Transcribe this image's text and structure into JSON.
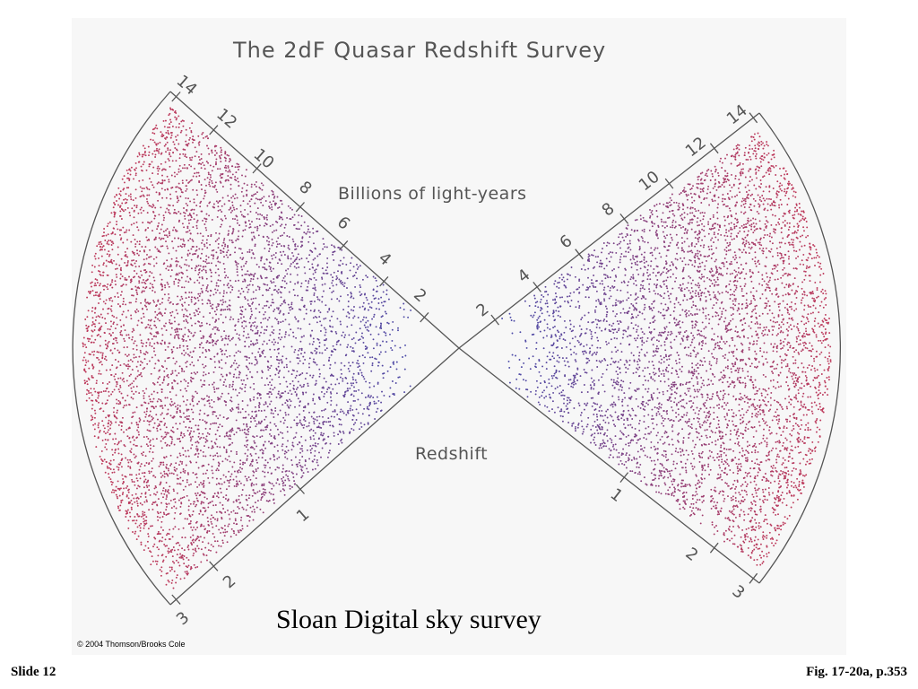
{
  "figure": {
    "title": "The 2dF Quasar Redshift Survey",
    "distance_label": "Billions of light-years",
    "redshift_label": "Redshift",
    "distance_ticks": [
      "2",
      "4",
      "6",
      "8",
      "10",
      "12",
      "14"
    ],
    "redshift_ticks": [
      "1",
      "2",
      "3"
    ],
    "copyright": "© 2004 Thomson/Brooks Cole",
    "colors": {
      "near": "#4a4aa8",
      "far": "#c03a5a",
      "outline": "#555555"
    }
  },
  "slide": {
    "caption": "Sloan Digital sky survey",
    "number": "Slide 12",
    "figure_ref": "Fig. 17-20a, p.353"
  }
}
